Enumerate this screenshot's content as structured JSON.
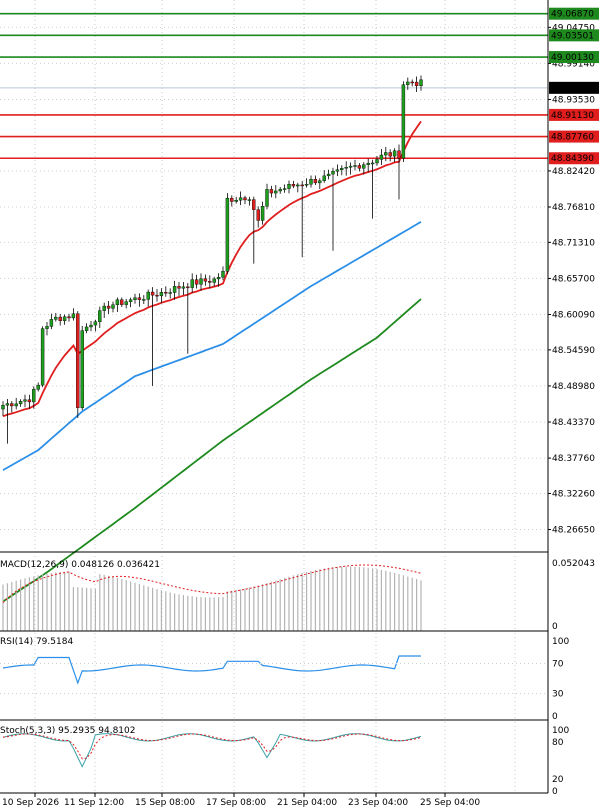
{
  "chart_data": {
    "type": "candlestick",
    "price_axis": {
      "ylim": [
        48.23,
        49.09
      ],
      "ticks": [
        "49.04750",
        "48.99140",
        "48.93530",
        "48.82420",
        "48.76810",
        "48.71310",
        "48.65700",
        "48.60090",
        "48.54590",
        "48.48980",
        "48.43370",
        "48.37760",
        "48.32260",
        "48.26650"
      ]
    },
    "x_ticks": [
      "10 Sep 2026",
      "11 Sep 12:00",
      "15 Sep 08:00",
      "17 Sep 08:00",
      "21 Sep 04:00",
      "23 Sep 04:00",
      "25 Sep 04:00"
    ],
    "current_price": "48.95340",
    "levels": [
      {
        "label": "49.06870",
        "value": 49.0687,
        "color": "#1e8a1e"
      },
      {
        "label": "49.03501",
        "value": 49.03501,
        "color": "#1e8a1e"
      },
      {
        "label": "49.00130",
        "value": 49.0013,
        "color": "#1e8a1e"
      },
      {
        "label": "48.91130",
        "value": 48.9113,
        "color": "#e01e1e"
      },
      {
        "label": "48.87760",
        "value": 48.8776,
        "color": "#e01e1e"
      },
      {
        "label": "48.84390",
        "value": 48.8439,
        "color": "#e01e1e"
      }
    ],
    "colors": {
      "bull": "#1e9e1e",
      "bear": "#e01e1e",
      "ma_fast": "#e01e1e",
      "ma_mid": "#2b8fe8",
      "ma_slow": "#1e8a1e",
      "signal": "#e01e1e",
      "rsi": "#2b8fe8"
    },
    "macd": {
      "label": "MACD(12,26,9) 0.048126 0.036421",
      "top_tick": "0.052043",
      "bottom_tick": "0",
      "ylim": [
        0,
        0.055
      ]
    },
    "rsi": {
      "label": "RSI(14) 79.5184",
      "ticks": [
        "100",
        "70",
        "30",
        "0"
      ]
    },
    "stoch": {
      "label": "Stoch(5,3,3) 95.2935 94.8102",
      "ticks": [
        "100",
        "80",
        "20",
        "0"
      ]
    }
  }
}
